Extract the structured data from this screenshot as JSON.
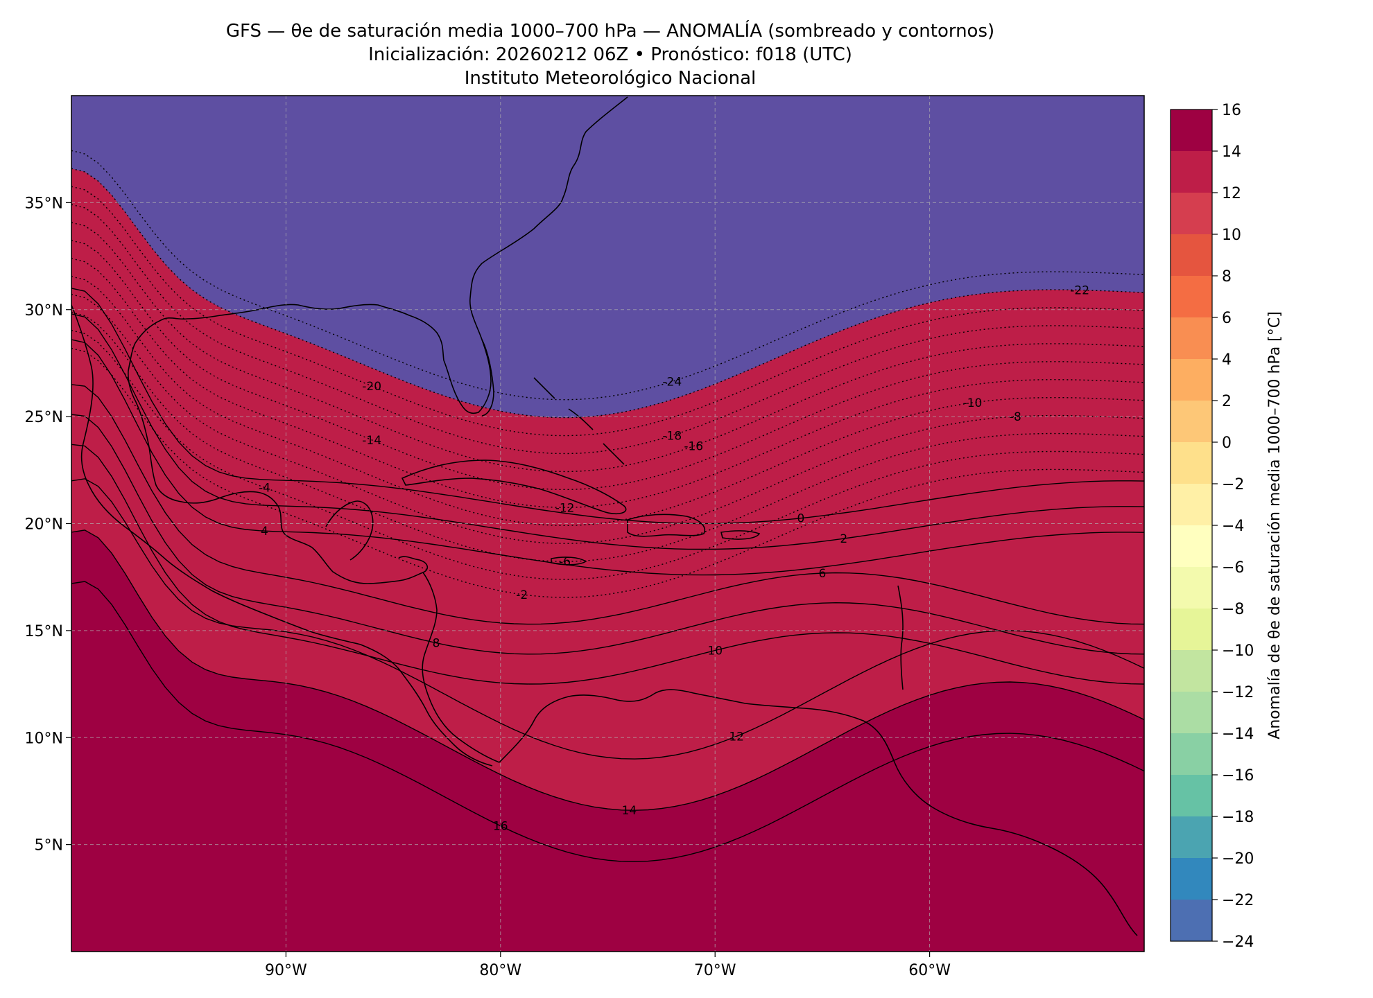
{
  "figure": {
    "title_lines": [
      "GFS — θe de saturación media 1000–700 hPa — ANOMALÍA (sombreado y contornos)",
      "Inicialización: 20260212 06Z   •   Pronóstico: f018 (UTC)",
      "Instituto Meteorológico Nacional"
    ]
  },
  "map": {
    "lon_range": [
      -100,
      -50
    ],
    "lat_range": [
      0,
      40
    ],
    "lat_ticks": [
      {
        "value": 35,
        "label": "35°N"
      },
      {
        "value": 30,
        "label": "30°N"
      },
      {
        "value": 25,
        "label": "25°N"
      },
      {
        "value": 20,
        "label": "20°N"
      },
      {
        "value": 15,
        "label": "15°N"
      },
      {
        "value": 10,
        "label": "10°N"
      },
      {
        "value": 5,
        "label": "5°N"
      }
    ],
    "lon_ticks": [
      {
        "value": -90,
        "label": "90°W"
      },
      {
        "value": -80,
        "label": "80°W"
      },
      {
        "value": -70,
        "label": "70°W"
      },
      {
        "value": -60,
        "label": "60°W"
      }
    ],
    "gridlines": true,
    "contour_labels": [
      "-24",
      "-22",
      "-20",
      "-18",
      "-16",
      "-14",
      "-12",
      "-10",
      "-8",
      "-6",
      "-4",
      "-2",
      "0",
      "2",
      "4",
      "6",
      "8",
      "10",
      "12",
      "14",
      "16"
    ]
  },
  "colorbar": {
    "label": "Anomalía de θe de saturación media 1000–700 hPa [°C]",
    "ticks": [
      "16",
      "14",
      "12",
      "10",
      "8",
      "6",
      "4",
      "2",
      "0",
      "−2",
      "−4",
      "−6",
      "−8",
      "−10",
      "−12",
      "−14",
      "−16",
      "−18",
      "−20",
      "−22",
      "−24"
    ],
    "colors": [
      "#9e0142",
      "#be1e48",
      "#d53e4f",
      "#e5553f",
      "#f46d43",
      "#f98e52",
      "#fdae61",
      "#fdc777",
      "#fee08b",
      "#fff0a6",
      "#ffffbf",
      "#f3faad",
      "#e6f598",
      "#c2e5a0",
      "#abdda4",
      "#89d0a4",
      "#66c2a5",
      "#4ba4b1",
      "#3288bd",
      "#4d6fb2",
      "#5e4fa2"
    ]
  }
}
